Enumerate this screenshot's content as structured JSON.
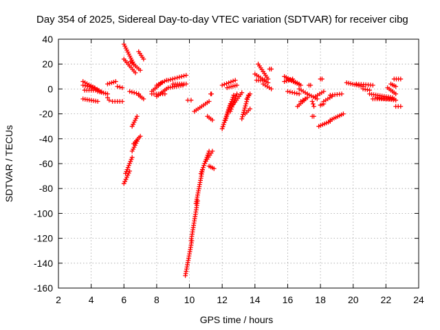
{
  "chart_data": {
    "type": "scatter",
    "title": "Day 354 of 2025, Sidereal Day-to-day VTEC variation (SDTVAR) for receiver cibg",
    "xlabel": "GPS time / hours",
    "ylabel": "SDTVAR / TECUs",
    "xlim": [
      2,
      24
    ],
    "ylim": [
      -160,
      40
    ],
    "xticks": [
      2,
      4,
      6,
      8,
      10,
      12,
      14,
      16,
      18,
      20,
      22,
      24
    ],
    "yticks": [
      40,
      20,
      0,
      -20,
      -40,
      -60,
      -80,
      -100,
      -120,
      -140,
      -160
    ],
    "grid": true,
    "marker": "+",
    "color": "#ff0000",
    "segments": [
      {
        "x": [
          3.5,
          4.6
        ],
        "y": [
          6,
          -2
        ]
      },
      {
        "x": [
          3.5,
          4.2
        ],
        "y": [
          3,
          1
        ]
      },
      {
        "x": [
          3.6,
          4.4
        ],
        "y": [
          -1,
          -1
        ]
      },
      {
        "x": [
          3.5,
          4.4
        ],
        "y": [
          -8,
          -10
        ]
      },
      {
        "x": [
          4.4,
          5.0
        ],
        "y": [
          -2,
          -4
        ]
      },
      {
        "x": [
          5.0,
          5.5
        ],
        "y": [
          4,
          6
        ]
      },
      {
        "x": [
          5.6,
          5.9
        ],
        "y": [
          2,
          1
        ]
      },
      {
        "x": [
          5.3,
          5.9
        ],
        "y": [
          -10,
          -10
        ]
      },
      {
        "x": [
          5.0,
          5.1
        ],
        "y": [
          -7,
          -9
        ]
      },
      {
        "x": [
          6.0,
          6.6
        ],
        "y": [
          36,
          20
        ]
      },
      {
        "x": [
          6.0,
          6.7
        ],
        "y": [
          24,
          13
        ]
      },
      {
        "x": [
          6.4,
          7.0
        ],
        "y": [
          22,
          15
        ]
      },
      {
        "x": [
          6.9,
          7.2
        ],
        "y": [
          30,
          24
        ]
      },
      {
        "x": [
          6.35,
          6.9
        ],
        "y": [
          -2,
          -4
        ]
      },
      {
        "x": [
          6.9,
          7.2
        ],
        "y": [
          -5,
          -8
        ]
      },
      {
        "x": [
          6.0,
          6.35
        ],
        "y": [
          -76,
          -66
        ]
      },
      {
        "x": [
          6.1,
          6.5
        ],
        "y": [
          -68,
          -55
        ]
      },
      {
        "x": [
          6.5,
          6.8
        ],
        "y": [
          -50,
          -42
        ]
      },
      {
        "x": [
          6.6,
          7.0
        ],
        "y": [
          -44,
          -38
        ]
      },
      {
        "x": [
          6.5,
          6.8
        ],
        "y": [
          -30,
          -22
        ]
      },
      {
        "x": [
          7.7,
          8.3
        ],
        "y": [
          -2,
          5
        ]
      },
      {
        "x": [
          8.0,
          8.6
        ],
        "y": [
          3,
          7
        ]
      },
      {
        "x": [
          7.7,
          8.5
        ],
        "y": [
          -4,
          -4
        ]
      },
      {
        "x": [
          8.0,
          8.6
        ],
        "y": [
          -6,
          0
        ]
      },
      {
        "x": [
          8.7,
          9.6
        ],
        "y": [
          1,
          3
        ]
      },
      {
        "x": [
          8.7,
          9.8
        ],
        "y": [
          7,
          11
        ]
      },
      {
        "x": [
          9.0,
          9.8
        ],
        "y": [
          4,
          4
        ]
      },
      {
        "x": [
          9.9,
          10.1
        ],
        "y": [
          -9,
          -9
        ]
      },
      {
        "x": [
          9.75,
          10.15
        ],
        "y": [
          -150,
          -122
        ]
      },
      {
        "x": [
          10.1,
          10.5
        ],
        "y": [
          -122,
          -90
        ]
      },
      {
        "x": [
          10.4,
          10.8
        ],
        "y": [
          -92,
          -65
        ]
      },
      {
        "x": [
          10.7,
          11.2
        ],
        "y": [
          -68,
          -50
        ]
      },
      {
        "x": [
          11.0,
          11.4
        ],
        "y": [
          -58,
          -50
        ]
      },
      {
        "x": [
          11.2,
          11.5
        ],
        "y": [
          -62,
          -64
        ]
      },
      {
        "x": [
          10.3,
          11.2
        ],
        "y": [
          -18,
          -10
        ]
      },
      {
        "x": [
          11.1,
          11.4
        ],
        "y": [
          -22,
          -25
        ]
      },
      {
        "x": [
          11.3,
          11.35
        ],
        "y": [
          -4,
          -4
        ]
      },
      {
        "x": [
          12.0,
          12.5
        ],
        "y": [
          -32,
          -12
        ]
      },
      {
        "x": [
          12.2,
          12.7
        ],
        "y": [
          -25,
          -5
        ]
      },
      {
        "x": [
          12.5,
          12.9
        ],
        "y": [
          -18,
          -4
        ]
      },
      {
        "x": [
          12.7,
          13.2
        ],
        "y": [
          -12,
          -3
        ]
      },
      {
        "x": [
          13.2,
          13.6
        ],
        "y": [
          -24,
          -5
        ]
      },
      {
        "x": [
          13.4,
          13.7
        ],
        "y": [
          -20,
          -16
        ]
      },
      {
        "x": [
          13.5,
          13.7
        ],
        "y": [
          -8,
          -4
        ]
      },
      {
        "x": [
          12.0,
          12.8
        ],
        "y": [
          3,
          7
        ]
      },
      {
        "x": [
          12.3,
          12.9
        ],
        "y": [
          1,
          3
        ]
      },
      {
        "x": [
          14.0,
          14.8
        ],
        "y": [
          12,
          5
        ]
      },
      {
        "x": [
          14.2,
          14.8
        ],
        "y": [
          20,
          8
        ]
      },
      {
        "x": [
          14.5,
          15.0
        ],
        "y": [
          4,
          0
        ]
      },
      {
        "x": [
          14.1,
          14.6
        ],
        "y": [
          7,
          7
        ]
      },
      {
        "x": [
          14.9,
          15.0
        ],
        "y": [
          16,
          16
        ]
      },
      {
        "x": [
          15.8,
          16.7
        ],
        "y": [
          10,
          4
        ]
      },
      {
        "x": [
          16.0,
          16.8
        ],
        "y": [
          8,
          3
        ]
      },
      {
        "x": [
          15.8,
          16.3
        ],
        "y": [
          6,
          8
        ]
      },
      {
        "x": [
          16.0,
          16.7
        ],
        "y": [
          -2,
          -4
        ]
      },
      {
        "x": [
          16.7,
          17.2
        ],
        "y": [
          0,
          -4
        ]
      },
      {
        "x": [
          16.6,
          17.1
        ],
        "y": [
          -14,
          -8
        ]
      },
      {
        "x": [
          16.8,
          17.2
        ],
        "y": [
          -10,
          -7
        ]
      },
      {
        "x": [
          17.2,
          17.8
        ],
        "y": [
          -4,
          -8
        ]
      },
      {
        "x": [
          17.7,
          18.2
        ],
        "y": [
          -6,
          -2
        ]
      },
      {
        "x": [
          17.3,
          17.4
        ],
        "y": [
          3,
          3
        ]
      },
      {
        "x": [
          17.5,
          17.6
        ],
        "y": [
          -10,
          -14
        ]
      },
      {
        "x": [
          17.5,
          17.6
        ],
        "y": [
          -22,
          -22
        ]
      },
      {
        "x": [
          18.0,
          18.1
        ],
        "y": [
          8,
          8
        ]
      },
      {
        "x": [
          18.0,
          18.2
        ],
        "y": [
          -13,
          -12
        ]
      },
      {
        "x": [
          18.2,
          18.7
        ],
        "y": [
          -10,
          -6
        ]
      },
      {
        "x": [
          18.6,
          19.3
        ],
        "y": [
          -5,
          -4
        ]
      },
      {
        "x": [
          17.9,
          18.6
        ],
        "y": [
          -30,
          -26
        ]
      },
      {
        "x": [
          18.6,
          19.4
        ],
        "y": [
          -25,
          -20
        ]
      },
      {
        "x": [
          19.6,
          20.6
        ],
        "y": [
          5,
          2
        ]
      },
      {
        "x": [
          20.2,
          21.2
        ],
        "y": [
          4,
          3
        ]
      },
      {
        "x": [
          20.6,
          21.0
        ],
        "y": [
          0,
          -1
        ]
      },
      {
        "x": [
          21.0,
          22.4
        ],
        "y": [
          -4,
          -7
        ]
      },
      {
        "x": [
          21.2,
          22.5
        ],
        "y": [
          -8,
          -8
        ]
      },
      {
        "x": [
          21.5,
          22.6
        ],
        "y": [
          -7,
          -9
        ]
      },
      {
        "x": [
          22.1,
          22.6
        ],
        "y": [
          1,
          -4
        ]
      },
      {
        "x": [
          22.3,
          22.6
        ],
        "y": [
          4,
          2
        ]
      },
      {
        "x": [
          22.5,
          22.9
        ],
        "y": [
          8,
          8
        ]
      },
      {
        "x": [
          22.6,
          22.9
        ],
        "y": [
          -14,
          -14
        ]
      }
    ]
  }
}
